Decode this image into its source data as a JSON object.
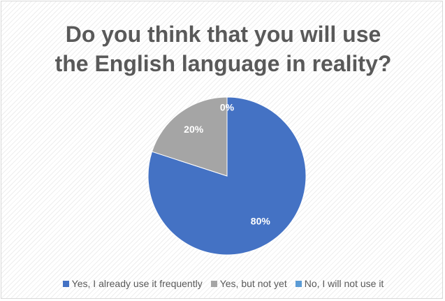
{
  "chart_data": {
    "type": "pie",
    "title": "Do you think that you will use the English language in reality?",
    "title_lines": [
      "Do you think that you will use",
      "the English language in reality?"
    ],
    "categories": [
      "Yes, I already use it frequently",
      "Yes, but not yet",
      "No, I will not use it"
    ],
    "values": [
      80,
      20,
      0
    ],
    "data_labels": [
      "80%",
      "20%",
      "0%"
    ],
    "colors": [
      "#4472c4",
      "#a5a5a5",
      "#5b9bd5"
    ],
    "legend_position": "bottom",
    "start_angle_deg": 0,
    "direction": "clockwise"
  }
}
